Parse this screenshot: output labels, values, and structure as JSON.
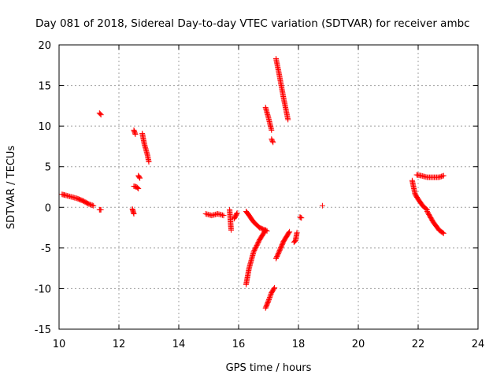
{
  "chart_data": {
    "type": "scatter",
    "title": "Day 081 of 2018, Sidereal Day-to-day VTEC variation (SDTVAR) for receiver ambc",
    "xlabel": "GPS time / hours",
    "ylabel": "SDTVAR / TECUs",
    "xlim": [
      10,
      24
    ],
    "ylim": [
      -15,
      20
    ],
    "xticks": [
      10,
      12,
      14,
      16,
      18,
      20,
      22,
      24
    ],
    "yticks": [
      -15,
      -10,
      -5,
      0,
      5,
      10,
      15,
      20
    ],
    "grid": true,
    "marker": "+",
    "color": "#ff0000",
    "segments": [
      {
        "x": [
          10.1,
          10.2,
          10.4,
          10.6,
          10.8,
          11.0,
          11.15
        ],
        "y": [
          1.6,
          1.5,
          1.3,
          1.1,
          0.8,
          0.4,
          0.2
        ]
      },
      {
        "x": [
          11.35,
          11.4
        ],
        "y": [
          -0.3,
          -0.3
        ]
      },
      {
        "x": [
          11.35,
          11.4
        ],
        "y": [
          11.6,
          11.4
        ]
      },
      {
        "x": [
          12.45,
          12.5
        ],
        "y": [
          -0.2,
          -0.8
        ]
      },
      {
        "x": [
          12.5,
          12.55
        ],
        "y": [
          9.5,
          9.0
        ]
      },
      {
        "x": [
          12.5,
          12.6,
          12.65
        ],
        "y": [
          2.6,
          2.5,
          2.3
        ]
      },
      {
        "x": [
          12.65,
          12.7
        ],
        "y": [
          3.9,
          3.6
        ]
      },
      {
        "x": [
          12.78,
          12.85,
          12.95,
          13.0
        ],
        "y": [
          9.1,
          7.8,
          6.5,
          5.6
        ]
      },
      {
        "x": [
          14.9,
          15.1,
          15.3,
          15.5
        ],
        "y": [
          -0.8,
          -1.0,
          -0.8,
          -1.0
        ]
      },
      {
        "x": [
          15.7,
          15.75
        ],
        "y": [
          -0.3,
          -2.8
        ]
      },
      {
        "x": [
          15.85,
          15.95
        ],
        "y": [
          -1.4,
          -0.7
        ]
      },
      {
        "x": [
          16.25,
          16.35,
          16.5,
          16.7,
          16.95
        ],
        "y": [
          -0.5,
          -1.0,
          -1.8,
          -2.5,
          -2.9
        ]
      },
      {
        "x": [
          16.25,
          16.35,
          16.5,
          16.7,
          16.9
        ],
        "y": [
          -9.5,
          -7.5,
          -5.5,
          -4.0,
          -2.8
        ]
      },
      {
        "x": [
          16.9,
          17.0,
          17.1,
          17.2
        ],
        "y": [
          -12.4,
          -11.5,
          -10.5,
          -9.9
        ]
      },
      {
        "x": [
          16.9,
          17.0,
          17.1
        ],
        "y": [
          12.3,
          11.0,
          9.5
        ]
      },
      {
        "x": [
          17.1,
          17.15
        ],
        "y": [
          8.4,
          8.0
        ]
      },
      {
        "x": [
          17.25,
          17.35,
          17.5,
          17.65
        ],
        "y": [
          18.3,
          16.5,
          13.5,
          10.8
        ]
      },
      {
        "x": [
          17.25,
          17.35,
          17.5,
          17.7
        ],
        "y": [
          -6.3,
          -5.5,
          -4.2,
          -3.0
        ]
      },
      {
        "x": [
          17.85,
          17.9,
          17.95
        ],
        "y": [
          -4.3,
          -4.1,
          -3.1
        ]
      },
      {
        "x": [
          18.05,
          18.1
        ],
        "y": [
          -1.2,
          -1.3
        ]
      },
      {
        "x": [
          18.8
        ],
        "y": [
          0.2
        ]
      },
      {
        "x": [
          21.8,
          21.9,
          22.0,
          22.15,
          22.3
        ],
        "y": [
          3.3,
          1.6,
          1.0,
          0.2,
          -0.3
        ]
      },
      {
        "x": [
          22.3,
          22.5,
          22.7,
          22.85
        ],
        "y": [
          -0.5,
          -1.8,
          -2.8,
          -3.2
        ]
      },
      {
        "x": [
          21.95,
          22.1,
          22.3,
          22.5,
          22.7,
          22.85
        ],
        "y": [
          4.0,
          3.9,
          3.7,
          3.7,
          3.7,
          3.9
        ]
      }
    ]
  }
}
